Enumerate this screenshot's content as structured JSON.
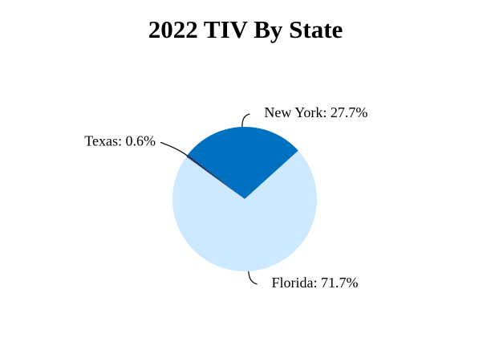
{
  "chart_data": {
    "type": "pie",
    "title": "2022 TIV By State",
    "values": [
      0.6,
      27.7,
      71.7
    ],
    "value_labels": [
      "Texas: 0.6%",
      "New York: 27.7%",
      "Florida: 71.7%"
    ],
    "colors": [
      "#1f3864",
      "#0070c0",
      "#cce9ff"
    ]
  }
}
